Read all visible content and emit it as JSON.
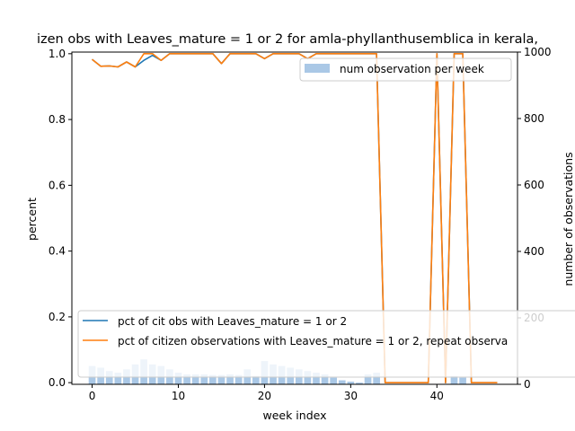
{
  "chart_data": {
    "type": "bar+line",
    "title": "izen obs with Leaves_mature = 1 or 2 for amla-phyllanthusemblica in kerala,",
    "xlabel": "week index",
    "ylabel": "percent",
    "y2label": "number of observations",
    "xlim": [
      -2.35,
      49.35
    ],
    "ylim": [
      -0.005,
      1.005
    ],
    "y2lim": [
      0,
      1000
    ],
    "xticks": [
      0,
      10,
      20,
      30,
      40
    ],
    "yticks": [
      0.0,
      0.2,
      0.4,
      0.6,
      0.8,
      1.0
    ],
    "y2ticks": [
      0,
      200,
      400,
      600,
      800,
      1000
    ],
    "grid": false,
    "bars": {
      "name": "num observation per week",
      "color": "#aac8e6",
      "x": [
        0,
        1,
        2,
        3,
        4,
        5,
        6,
        7,
        8,
        9,
        10,
        11,
        12,
        13,
        14,
        15,
        16,
        17,
        18,
        19,
        20,
        21,
        22,
        23,
        24,
        25,
        26,
        27,
        28,
        29,
        30,
        31,
        32,
        33,
        34,
        35,
        36,
        37,
        38,
        39,
        40,
        41,
        42,
        43,
        44,
        45,
        46,
        47
      ],
      "values": [
        55,
        50,
        40,
        35,
        45,
        60,
        75,
        60,
        55,
        45,
        35,
        30,
        30,
        30,
        28,
        28,
        30,
        28,
        45,
        25,
        70,
        60,
        55,
        50,
        45,
        40,
        35,
        30,
        20,
        12,
        8,
        5,
        30,
        35,
        0,
        0,
        0,
        0,
        0,
        0,
        0,
        0,
        25,
        20,
        0,
        0,
        0,
        0
      ]
    },
    "series": [
      {
        "name": "pct of cit obs with Leaves_mature = 1 or 2",
        "color": "#1f77b4",
        "x": [
          0,
          1,
          2,
          3,
          4,
          5,
          6,
          7,
          8,
          9,
          10,
          11,
          12,
          13,
          14,
          15,
          16,
          17,
          18,
          19,
          20,
          21,
          22,
          23,
          24,
          25,
          26,
          27,
          28,
          29,
          30,
          31,
          32,
          33,
          34,
          35,
          36,
          37,
          38,
          39,
          40,
          41,
          42,
          43,
          44,
          45,
          46,
          47
        ],
        "values": [
          0.983,
          0.962,
          0.963,
          0.96,
          0.975,
          0.96,
          0.98,
          0.995,
          0.98,
          1.0,
          1.0,
          1.0,
          1.0,
          1.0,
          1.0,
          0.97,
          1.0,
          1.0,
          1.0,
          1.0,
          0.985,
          1.0,
          1.0,
          1.0,
          1.0,
          0.985,
          1.0,
          1.0,
          1.0,
          1.0,
          1.0,
          1.0,
          1.0,
          1.0,
          0.0,
          0.0,
          0.0,
          0.0,
          0.0,
          0.0,
          1.0,
          0.0,
          1.0,
          1.0,
          0.0,
          0.0,
          0.0,
          0.0
        ]
      },
      {
        "name": "pct of citizen observations with Leaves_mature = 1 or 2, repeat observa",
        "color": "#ff7f0e",
        "x": [
          0,
          1,
          2,
          3,
          4,
          5,
          6,
          7,
          8,
          9,
          10,
          11,
          12,
          13,
          14,
          15,
          16,
          17,
          18,
          19,
          20,
          21,
          22,
          23,
          24,
          25,
          26,
          27,
          28,
          29,
          30,
          31,
          32,
          33,
          34,
          35,
          36,
          37,
          38,
          39,
          40,
          41,
          42,
          43,
          44,
          45,
          46,
          47
        ],
        "values": [
          0.983,
          0.962,
          0.963,
          0.96,
          0.975,
          0.96,
          1.0,
          1.0,
          0.98,
          1.0,
          1.0,
          1.0,
          1.0,
          1.0,
          1.0,
          0.97,
          1.0,
          1.0,
          1.0,
          1.0,
          0.985,
          1.0,
          1.0,
          1.0,
          1.0,
          0.985,
          1.0,
          1.0,
          1.0,
          1.0,
          1.0,
          1.0,
          1.0,
          1.0,
          0.0,
          0.0,
          0.0,
          0.0,
          0.0,
          0.0,
          1.0,
          0.0,
          1.0,
          1.0,
          0.0,
          0.0,
          0.0,
          0.0
        ]
      }
    ],
    "legend_upper": "top-right",
    "legend_lower": "bottom-left"
  }
}
